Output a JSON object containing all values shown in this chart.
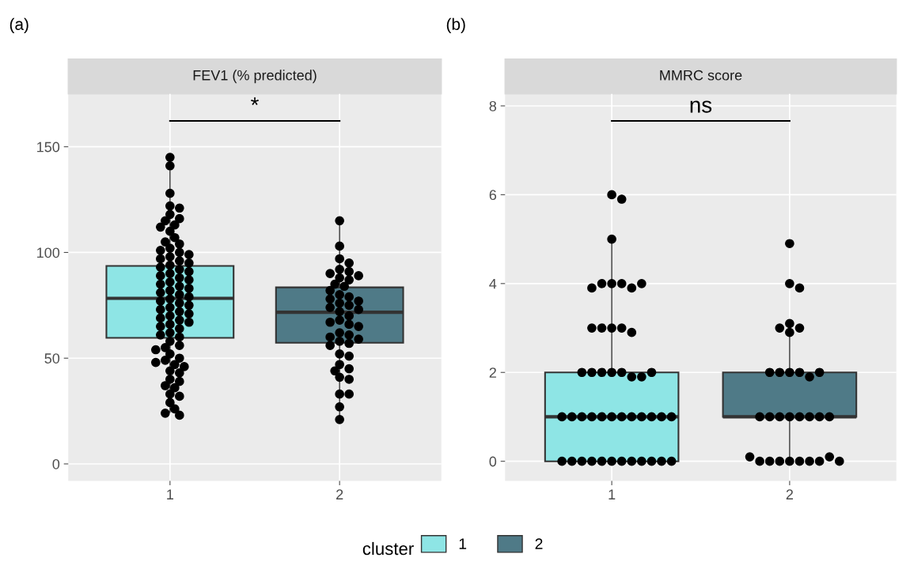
{
  "chart_data": [
    {
      "type": "box",
      "title": "(a)",
      "subtitle": "FEV1 (% predicted)",
      "categories": [
        "1",
        "2"
      ],
      "series": [
        {
          "name": "1",
          "color": "#8ee5e5",
          "boxes": [
            {
              "low": 24.5,
              "q1": 59.6,
              "median": 78.3,
              "q3": 93.6,
              "high": 139.8
            },
            null
          ]
        },
        {
          "name": "2",
          "color": "#4f7a87",
          "boxes": [
            null,
            {
              "low": 21.2,
              "q1": 57.3,
              "median": 71.7,
              "q3": 83.5,
              "high": 114.9
            }
          ]
        },
        {
          "type": "scatter",
          "color": "#000000",
          "x": [
            "1",
            "1",
            "1",
            "1",
            "1",
            "1",
            "1",
            "1",
            "1",
            "1",
            "1",
            "1",
            "1",
            "1",
            "1",
            "1",
            "1",
            "1",
            "1",
            "1",
            "1",
            "1",
            "1",
            "1",
            "1",
            "1",
            "1",
            "1",
            "1",
            "1",
            "1",
            "1",
            "1",
            "1",
            "1",
            "1",
            "1",
            "1",
            "1",
            "1",
            "1",
            "1",
            "1",
            "1",
            "1",
            "1",
            "1",
            "1",
            "1",
            "1",
            "1",
            "1",
            "1",
            "1",
            "1",
            "1",
            "1",
            "1",
            "1",
            "1",
            "1",
            "1",
            "1",
            "1",
            "1",
            "1",
            "1",
            "1",
            "1",
            "1",
            "1",
            "1",
            "1",
            "1",
            "1",
            "1",
            "1",
            "1"
          ],
          "values": [
            145,
            141,
            128,
            122,
            121,
            118,
            116,
            115,
            113,
            112,
            110,
            107,
            105,
            104,
            102,
            101,
            100,
            99,
            98,
            97,
            96,
            95,
            94,
            93,
            92,
            91,
            90,
            89,
            88,
            87,
            86,
            85,
            84,
            83,
            82,
            81,
            80,
            79,
            78,
            77,
            76,
            75,
            74,
            73,
            72,
            71,
            70,
            69,
            68,
            67,
            66,
            65,
            64,
            62,
            61,
            60,
            58,
            56,
            55,
            54,
            52,
            50,
            49,
            48,
            47,
            46,
            44,
            43,
            40,
            39,
            37,
            36,
            33,
            32,
            29,
            26,
            24,
            23
          ]
        },
        {
          "type": "scatter",
          "color": "#000000",
          "x": [
            "2",
            "2",
            "2",
            "2",
            "2",
            "2",
            "2",
            "2",
            "2",
            "2",
            "2",
            "2",
            "2",
            "2",
            "2",
            "2",
            "2",
            "2",
            "2",
            "2",
            "2",
            "2",
            "2",
            "2",
            "2",
            "2",
            "2",
            "2",
            "2",
            "2",
            "2",
            "2",
            "2",
            "2",
            "2",
            "2",
            "2",
            "2",
            "2",
            "2",
            "2",
            "2",
            "2",
            "2",
            "2"
          ],
          "values": [
            115,
            103,
            97,
            95,
            92,
            91,
            90,
            89,
            88,
            87,
            85,
            84,
            82,
            80,
            79,
            78,
            77,
            76,
            75,
            74,
            73,
            72,
            70,
            68,
            67,
            66,
            65,
            62,
            61,
            60,
            59,
            58,
            57,
            56,
            52,
            51,
            47,
            45,
            44,
            41,
            40,
            33,
            33,
            27,
            21
          ]
        }
      ],
      "ylim": [
        -8,
        175
      ],
      "yticks": [
        0,
        50,
        100,
        150
      ],
      "grid": true,
      "annotations": [
        "*"
      ],
      "legend": "bottom",
      "legend_title": "cluster",
      "marker": "circle"
    },
    {
      "type": "box",
      "title": "(b)",
      "subtitle": "MMRC score",
      "categories": [
        "1",
        "2"
      ],
      "series": [
        {
          "name": "1",
          "color": "#8ee5e5",
          "boxes": [
            {
              "low": 0,
              "q1": 0,
              "median": 1,
              "q3": 2,
              "high": 5
            },
            null
          ]
        },
        {
          "name": "2",
          "color": "#4f7a87",
          "boxes": [
            null,
            {
              "low": 0,
              "q1": 1,
              "median": 1,
              "q3": 2,
              "high": 2.9
            }
          ]
        },
        {
          "type": "scatter",
          "color": "#000000",
          "x": [
            "1",
            "1",
            "1",
            "1",
            "1",
            "1",
            "1",
            "1",
            "1",
            "1",
            "1",
            "1",
            "1",
            "1",
            "1",
            "1",
            "1",
            "1",
            "1",
            "1",
            "1",
            "1",
            "1",
            "1",
            "1",
            "1",
            "1",
            "1",
            "1",
            "1",
            "1",
            "1",
            "1",
            "1",
            "1",
            "1",
            "1",
            "1",
            "1",
            "1",
            "1",
            "1",
            "1",
            "1",
            "1",
            "1"
          ],
          "values": [
            6,
            5.9,
            5,
            4,
            4,
            4,
            3.9,
            3.9,
            4,
            3,
            3,
            3,
            2.9,
            3,
            2,
            2,
            2,
            1.9,
            2,
            1.9,
            2,
            2,
            1,
            1,
            1,
            1,
            1,
            1,
            1,
            1,
            1,
            1,
            1,
            1,
            0,
            0,
            0,
            0,
            0,
            0,
            0,
            0,
            0,
            0,
            0,
            0
          ]
        },
        {
          "type": "scatter",
          "color": "#000000",
          "x": [
            "2",
            "2",
            "2",
            "2",
            "2",
            "2",
            "2",
            "2",
            "2",
            "2",
            "2",
            "2",
            "2",
            "2",
            "2",
            "2",
            "2",
            "2",
            "2",
            "2",
            "2",
            "2",
            "2",
            "2",
            "2",
            "2",
            "2",
            "2",
            "2",
            "2",
            "2"
          ],
          "values": [
            4.9,
            4,
            3.9,
            3.1,
            3,
            3,
            2.9,
            2,
            2,
            2,
            1.9,
            2,
            2,
            1,
            1,
            1,
            1,
            1,
            1,
            1,
            1,
            0,
            0,
            0,
            0,
            0,
            0,
            0,
            0.1,
            0.1,
            0
          ]
        }
      ],
      "ylim": [
        -0.44,
        8.27
      ],
      "yticks": [
        0,
        2,
        4,
        6,
        8
      ],
      "grid": true,
      "annotations": [
        "ns"
      ],
      "marker": "circle"
    }
  ]
}
